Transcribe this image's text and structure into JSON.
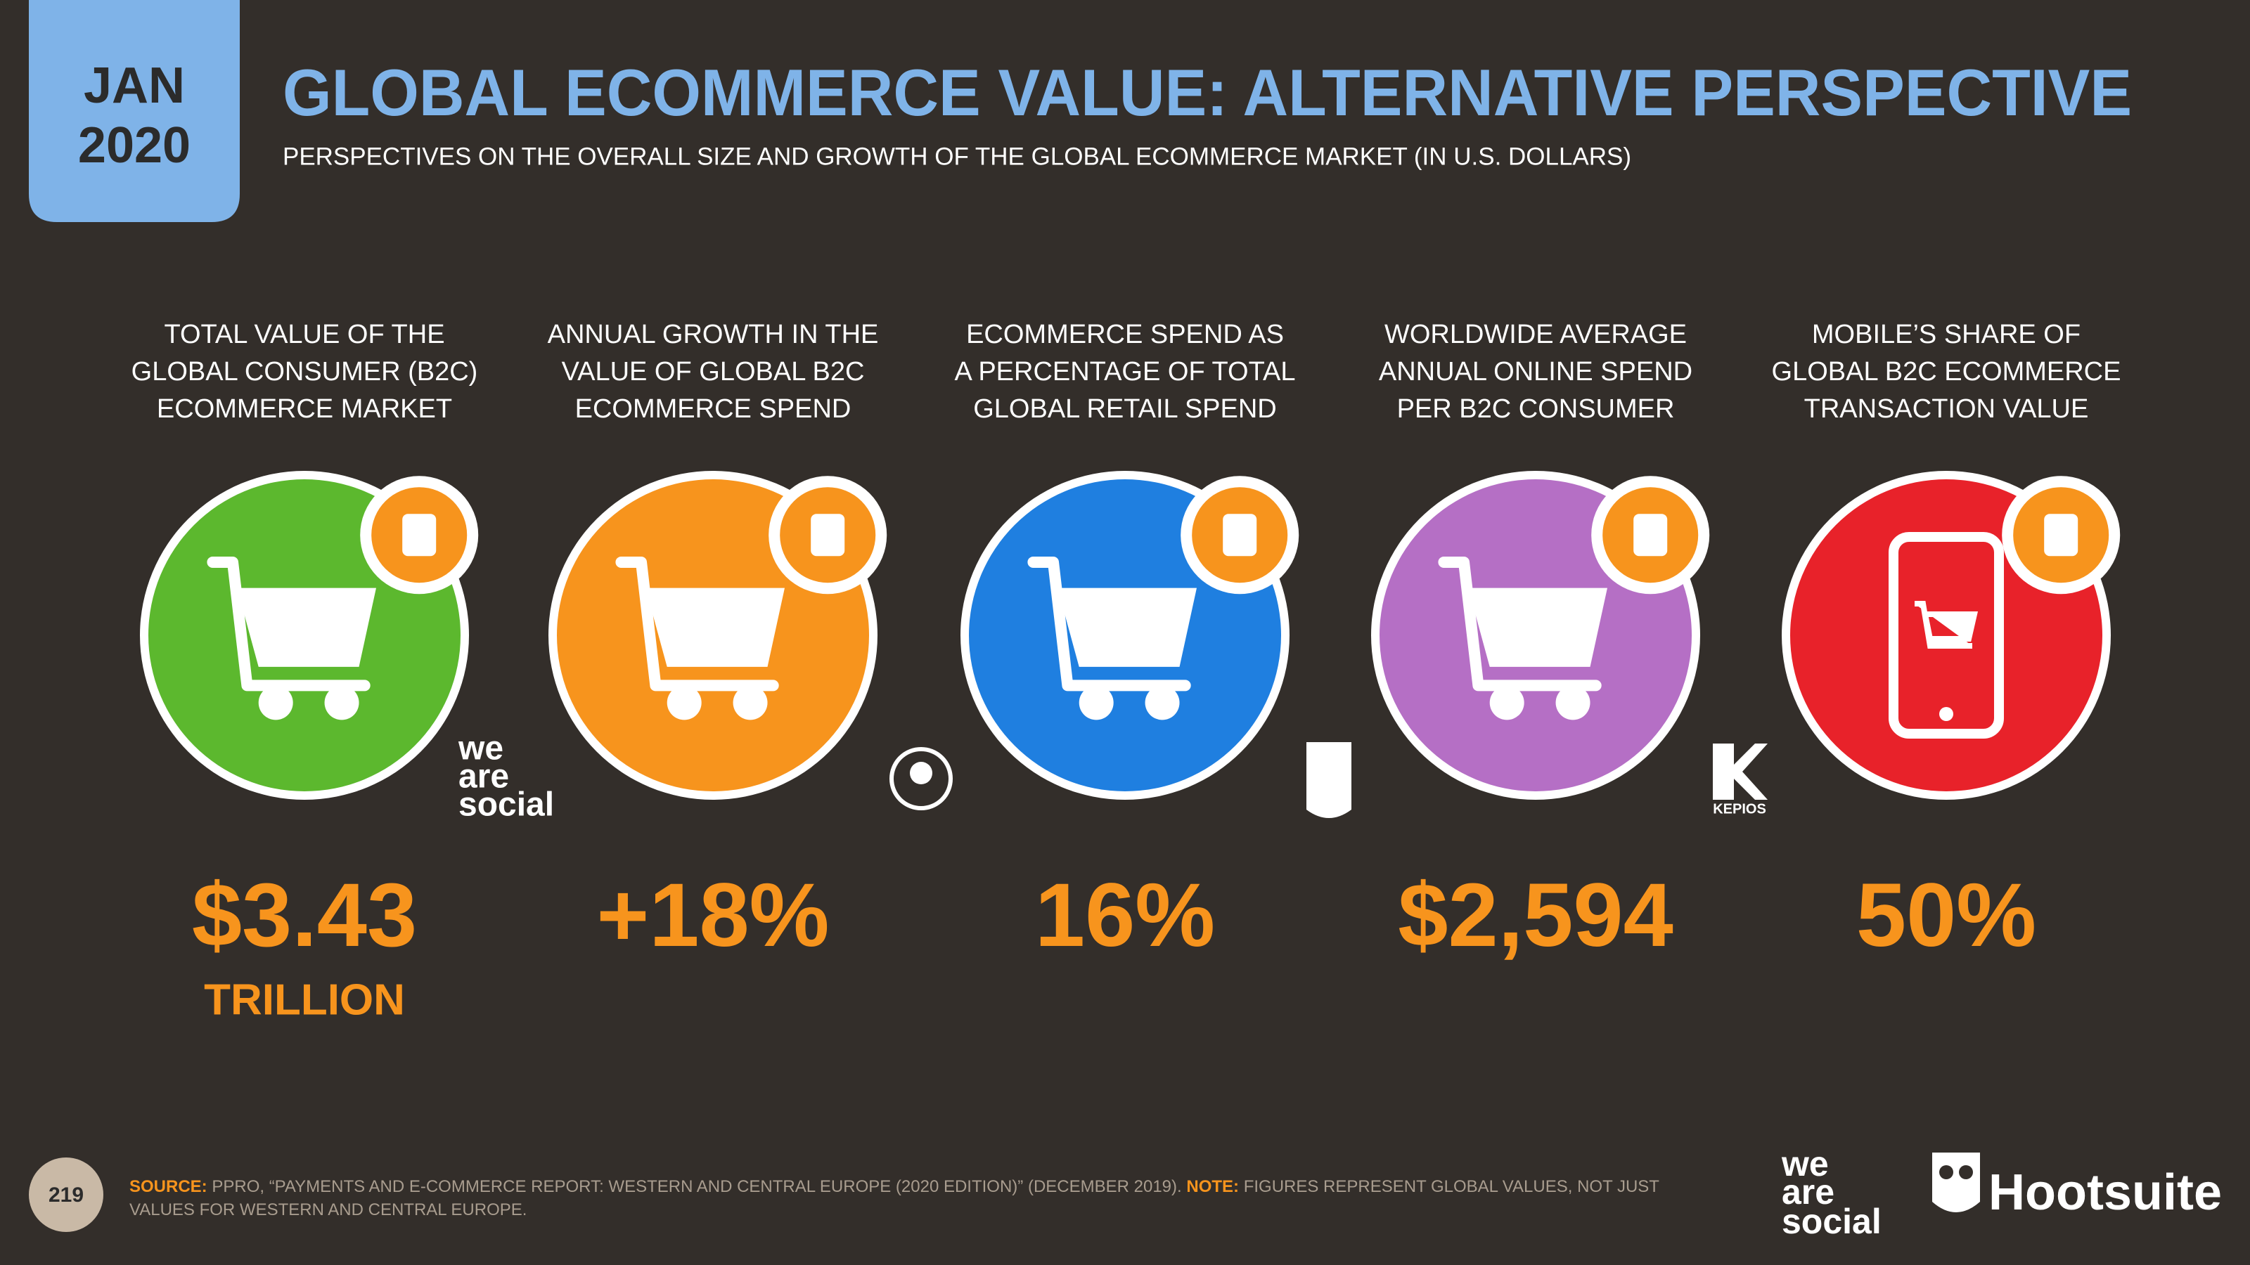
{
  "header": {
    "month": "JAN",
    "year": "2020",
    "title": "GLOBAL ECOMMERCE VALUE: ALTERNATIVE PERSPECTIVE",
    "subtitle": "PERSPECTIVES ON THE OVERALL SIZE AND GROWTH OF THE GLOBAL ECOMMERCE MARKET (IN U.S. DOLLARS)"
  },
  "stats": [
    {
      "label": [
        "TOTAL VALUE OF THE",
        "GLOBAL CONSUMER (B2C)",
        "ECOMMERCE MARKET"
      ],
      "value": "$3.43",
      "unit": "TRILLION",
      "color": "#5cb82e"
    },
    {
      "label": [
        "ANNUAL GROWTH IN THE",
        "VALUE OF GLOBAL B2C",
        "ECOMMERCE SPEND"
      ],
      "value": "+18%",
      "color": "#f7941d"
    },
    {
      "label": [
        "ECOMMERCE SPEND AS",
        "A PERCENTAGE OF TOTAL",
        "GLOBAL RETAIL SPEND"
      ],
      "value": "16%",
      "color": "#1f7fe0"
    },
    {
      "label": [
        "WORLDWIDE AVERAGE",
        "ANNUAL ONLINE SPEND",
        "PER B2C CONSUMER"
      ],
      "value": "$2,594",
      "color": "#b56fc5"
    },
    {
      "label": [
        "MOBILE’S SHARE OF",
        "GLOBAL B2C ECOMMERCE",
        "TRANSACTION VALUE"
      ],
      "value": "50%",
      "color": "#e8222a"
    }
  ],
  "logos": {
    "we_are_social": [
      "we",
      "are",
      "social"
    ],
    "kepios": "KEPIOS",
    "hootsuite": "Hootsuite"
  },
  "footer": {
    "page": "219",
    "source_label": "SOURCE:",
    "source": " PPRO, “PAYMENTS AND E-COMMERCE REPORT: WESTERN AND CENTRAL EUROPE (2020 EDITION)” (DECEMBER 2019). ",
    "note_label": "NOTE:",
    "note": " FIGURES REPRESENT GLOBAL VALUES, NOT JUST VALUES FOR WESTERN AND CENTRAL EUROPE."
  }
}
